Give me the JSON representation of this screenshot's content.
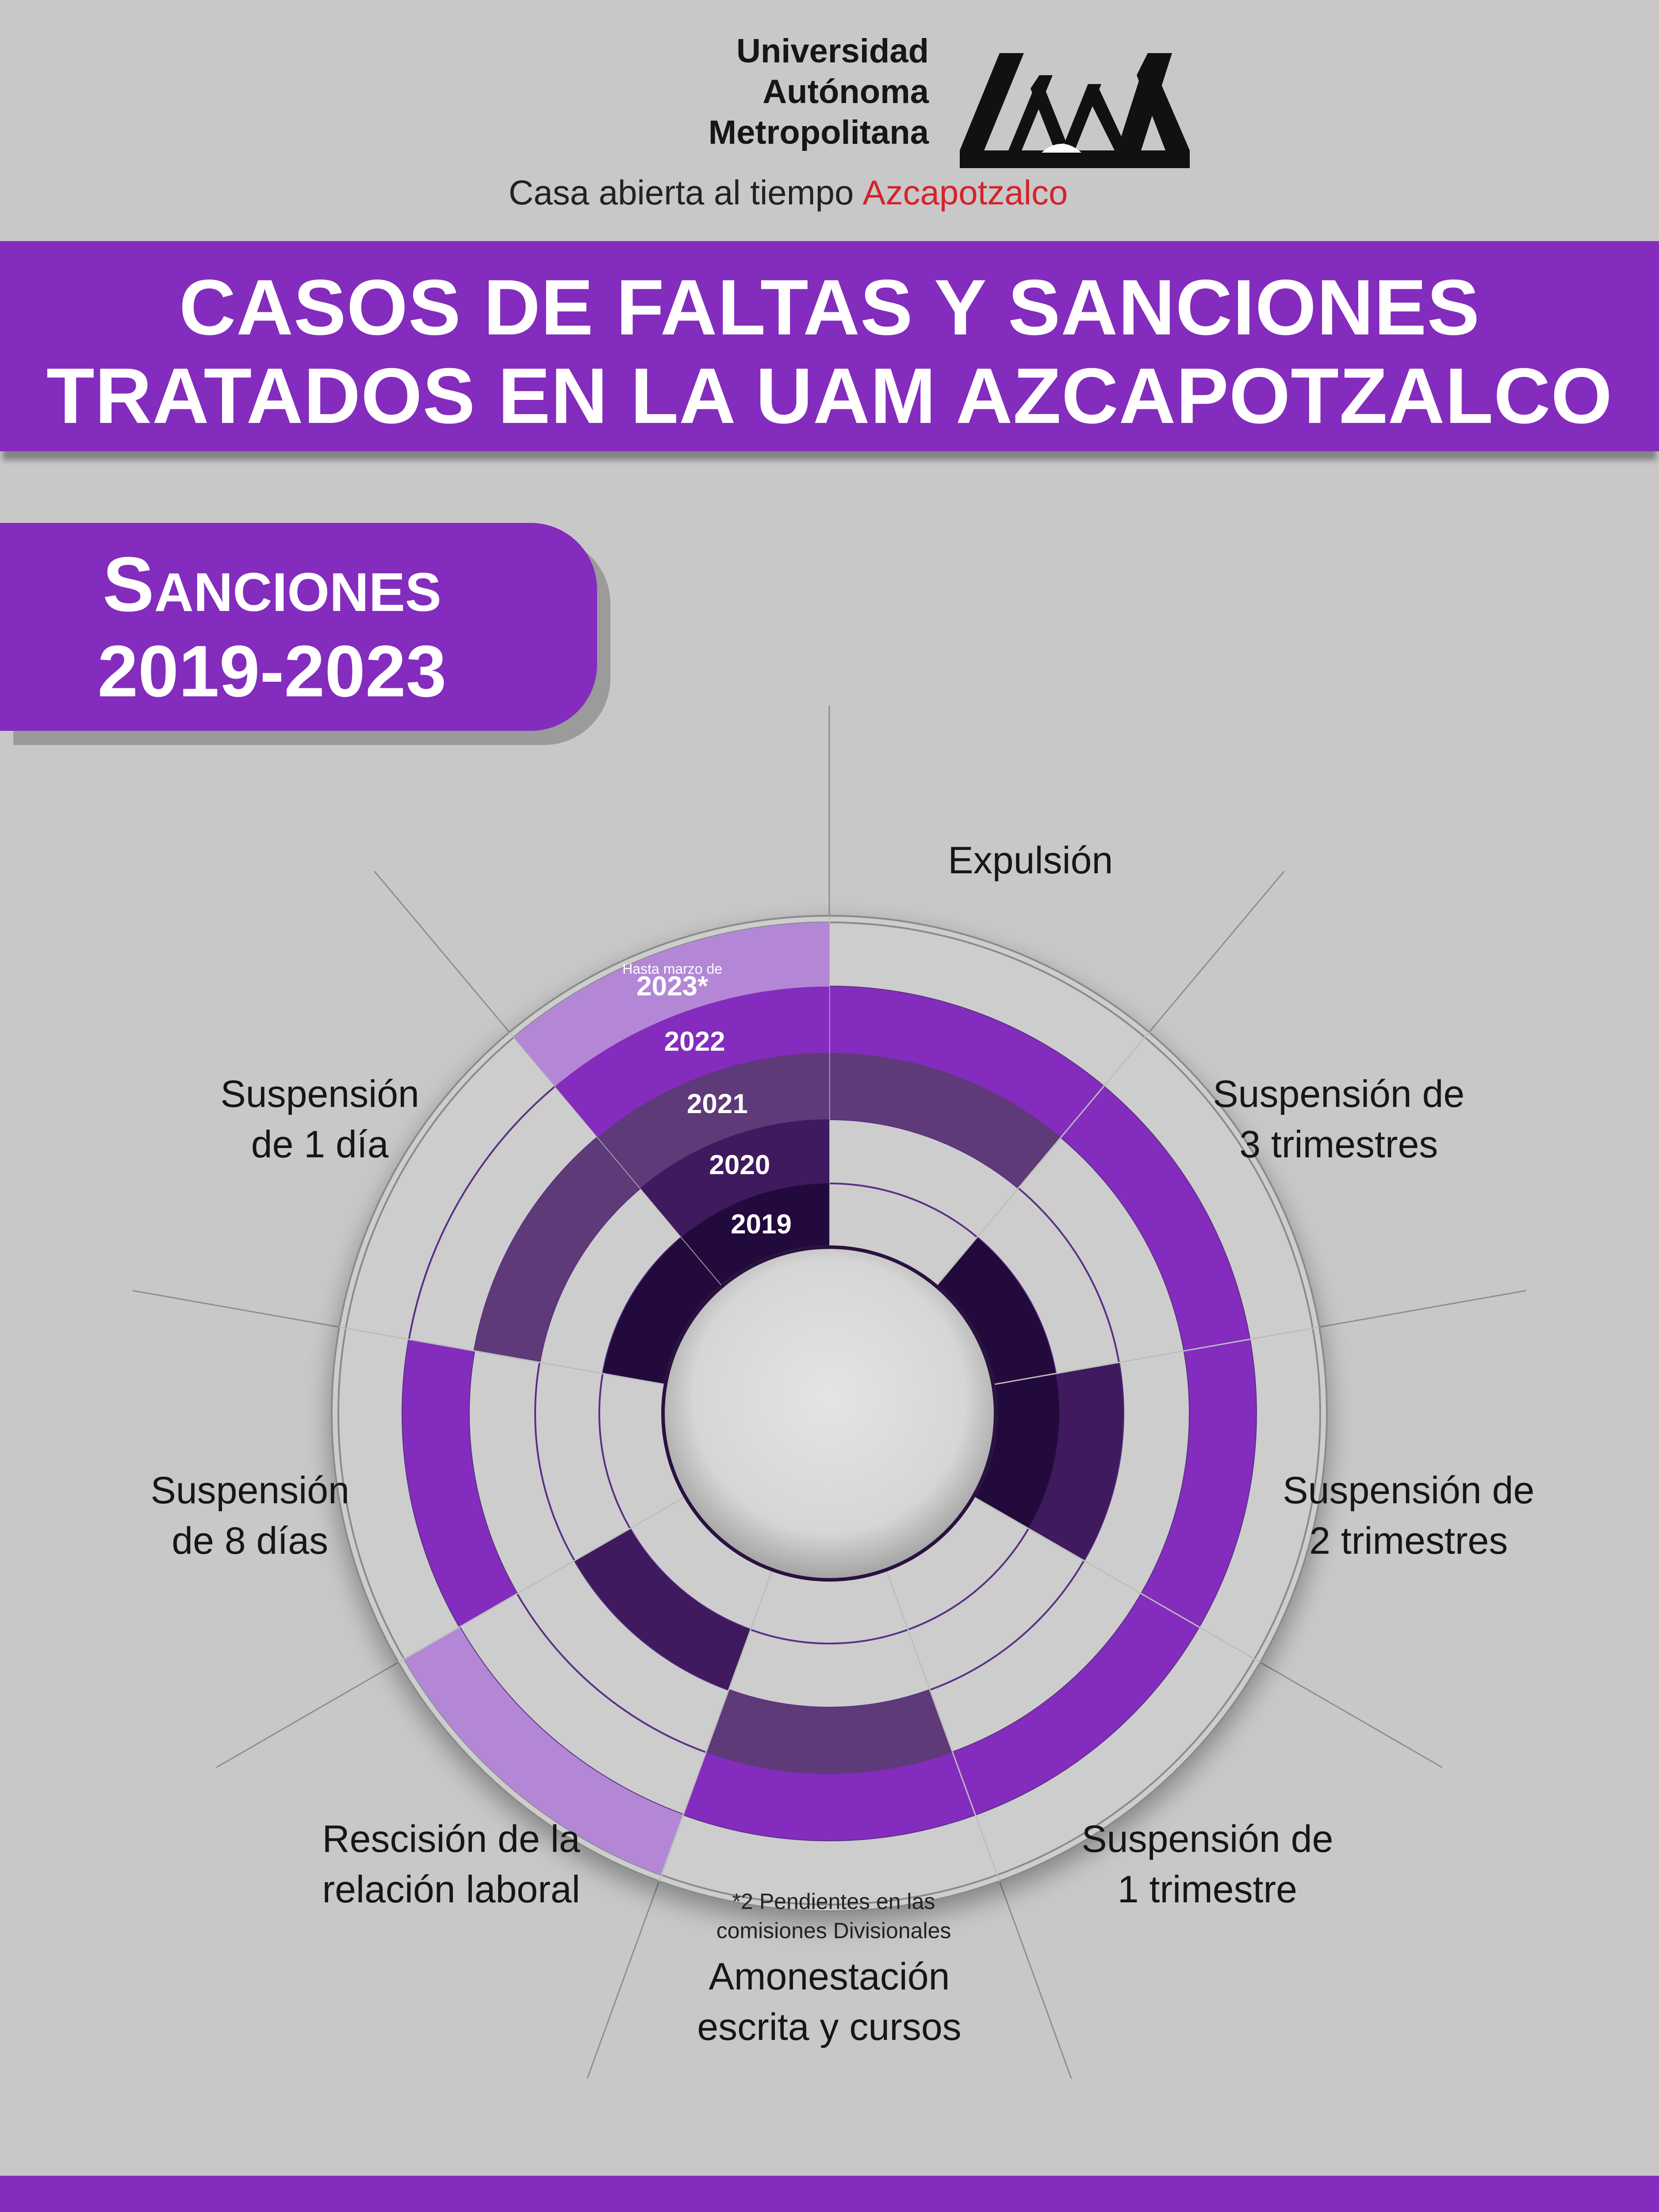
{
  "header": {
    "university_lines": [
      "Universidad",
      "Autónoma",
      "Metropolitana"
    ],
    "tagline": "Casa abierta al tiempo",
    "campus": "Azcapotzalco"
  },
  "title": {
    "line1": "CASOS DE FALTAS Y SANCIONES",
    "line2": "TRATADOS EN LA UAM AZCAPOTZALCO"
  },
  "subtitle": {
    "line1": "Sanciones",
    "line2": "2019-2023"
  },
  "colors": {
    "background": "#c8c8c8",
    "brand_purple": "#842cbd",
    "campus_red": "#d5232b",
    "year_2019": "#230a3c",
    "year_2020": "#3f1a5e",
    "year_2021": "#5e3a78",
    "year_2022": "#842cbd",
    "year_2023": "#b387d6",
    "ring_empty": "#d0d0d0",
    "center_disc": "#dcdcdc"
  },
  "chart_data": {
    "type": "radial",
    "categories": [
      "Expulsión",
      "Suspensión de 3 trimestres",
      "Suspensión de 2 trimestres",
      "Suspensión de 1 trimestre",
      "Amonestación escrita y cursos",
      "Rescisión de la relación laboral",
      "Suspensión de 8 días",
      "Suspensión de 1 día"
    ],
    "category_labels": [
      [
        "Expulsión"
      ],
      [
        "Suspensión de",
        "3 trimestres"
      ],
      [
        "Suspensión de",
        "2 trimestres"
      ],
      [
        "Suspensión de",
        "1 trimestre"
      ],
      [
        "Amonestación",
        "escrita y cursos"
      ],
      [
        "Rescisión de la",
        "relación laboral"
      ],
      [
        "Suspensión",
        "de 8 días"
      ],
      [
        "Suspensión",
        "de 1 día"
      ]
    ],
    "series": [
      {
        "name": "2019",
        "values": [
          0,
          1,
          1,
          0,
          0,
          0,
          0,
          1
        ]
      },
      {
        "name": "2020",
        "values": [
          0,
          0,
          1,
          0,
          0,
          1,
          0,
          0
        ]
      },
      {
        "name": "2021",
        "values": [
          1,
          0,
          0,
          0,
          1,
          0,
          0,
          1
        ]
      },
      {
        "name": "2022",
        "values": [
          1,
          1,
          1,
          1,
          1,
          0,
          1,
          0
        ]
      },
      {
        "name": "2023",
        "values": [
          0,
          0,
          0,
          0,
          0,
          1,
          0,
          0
        ]
      }
    ],
    "year_labels": [
      "2019",
      "2020",
      "2021",
      "2022",
      "2023*"
    ],
    "year_2023_note": "Hasta marzo de",
    "footnote_lines": [
      "*2 Pendientes en las",
      "comisiones Divisionales"
    ]
  }
}
